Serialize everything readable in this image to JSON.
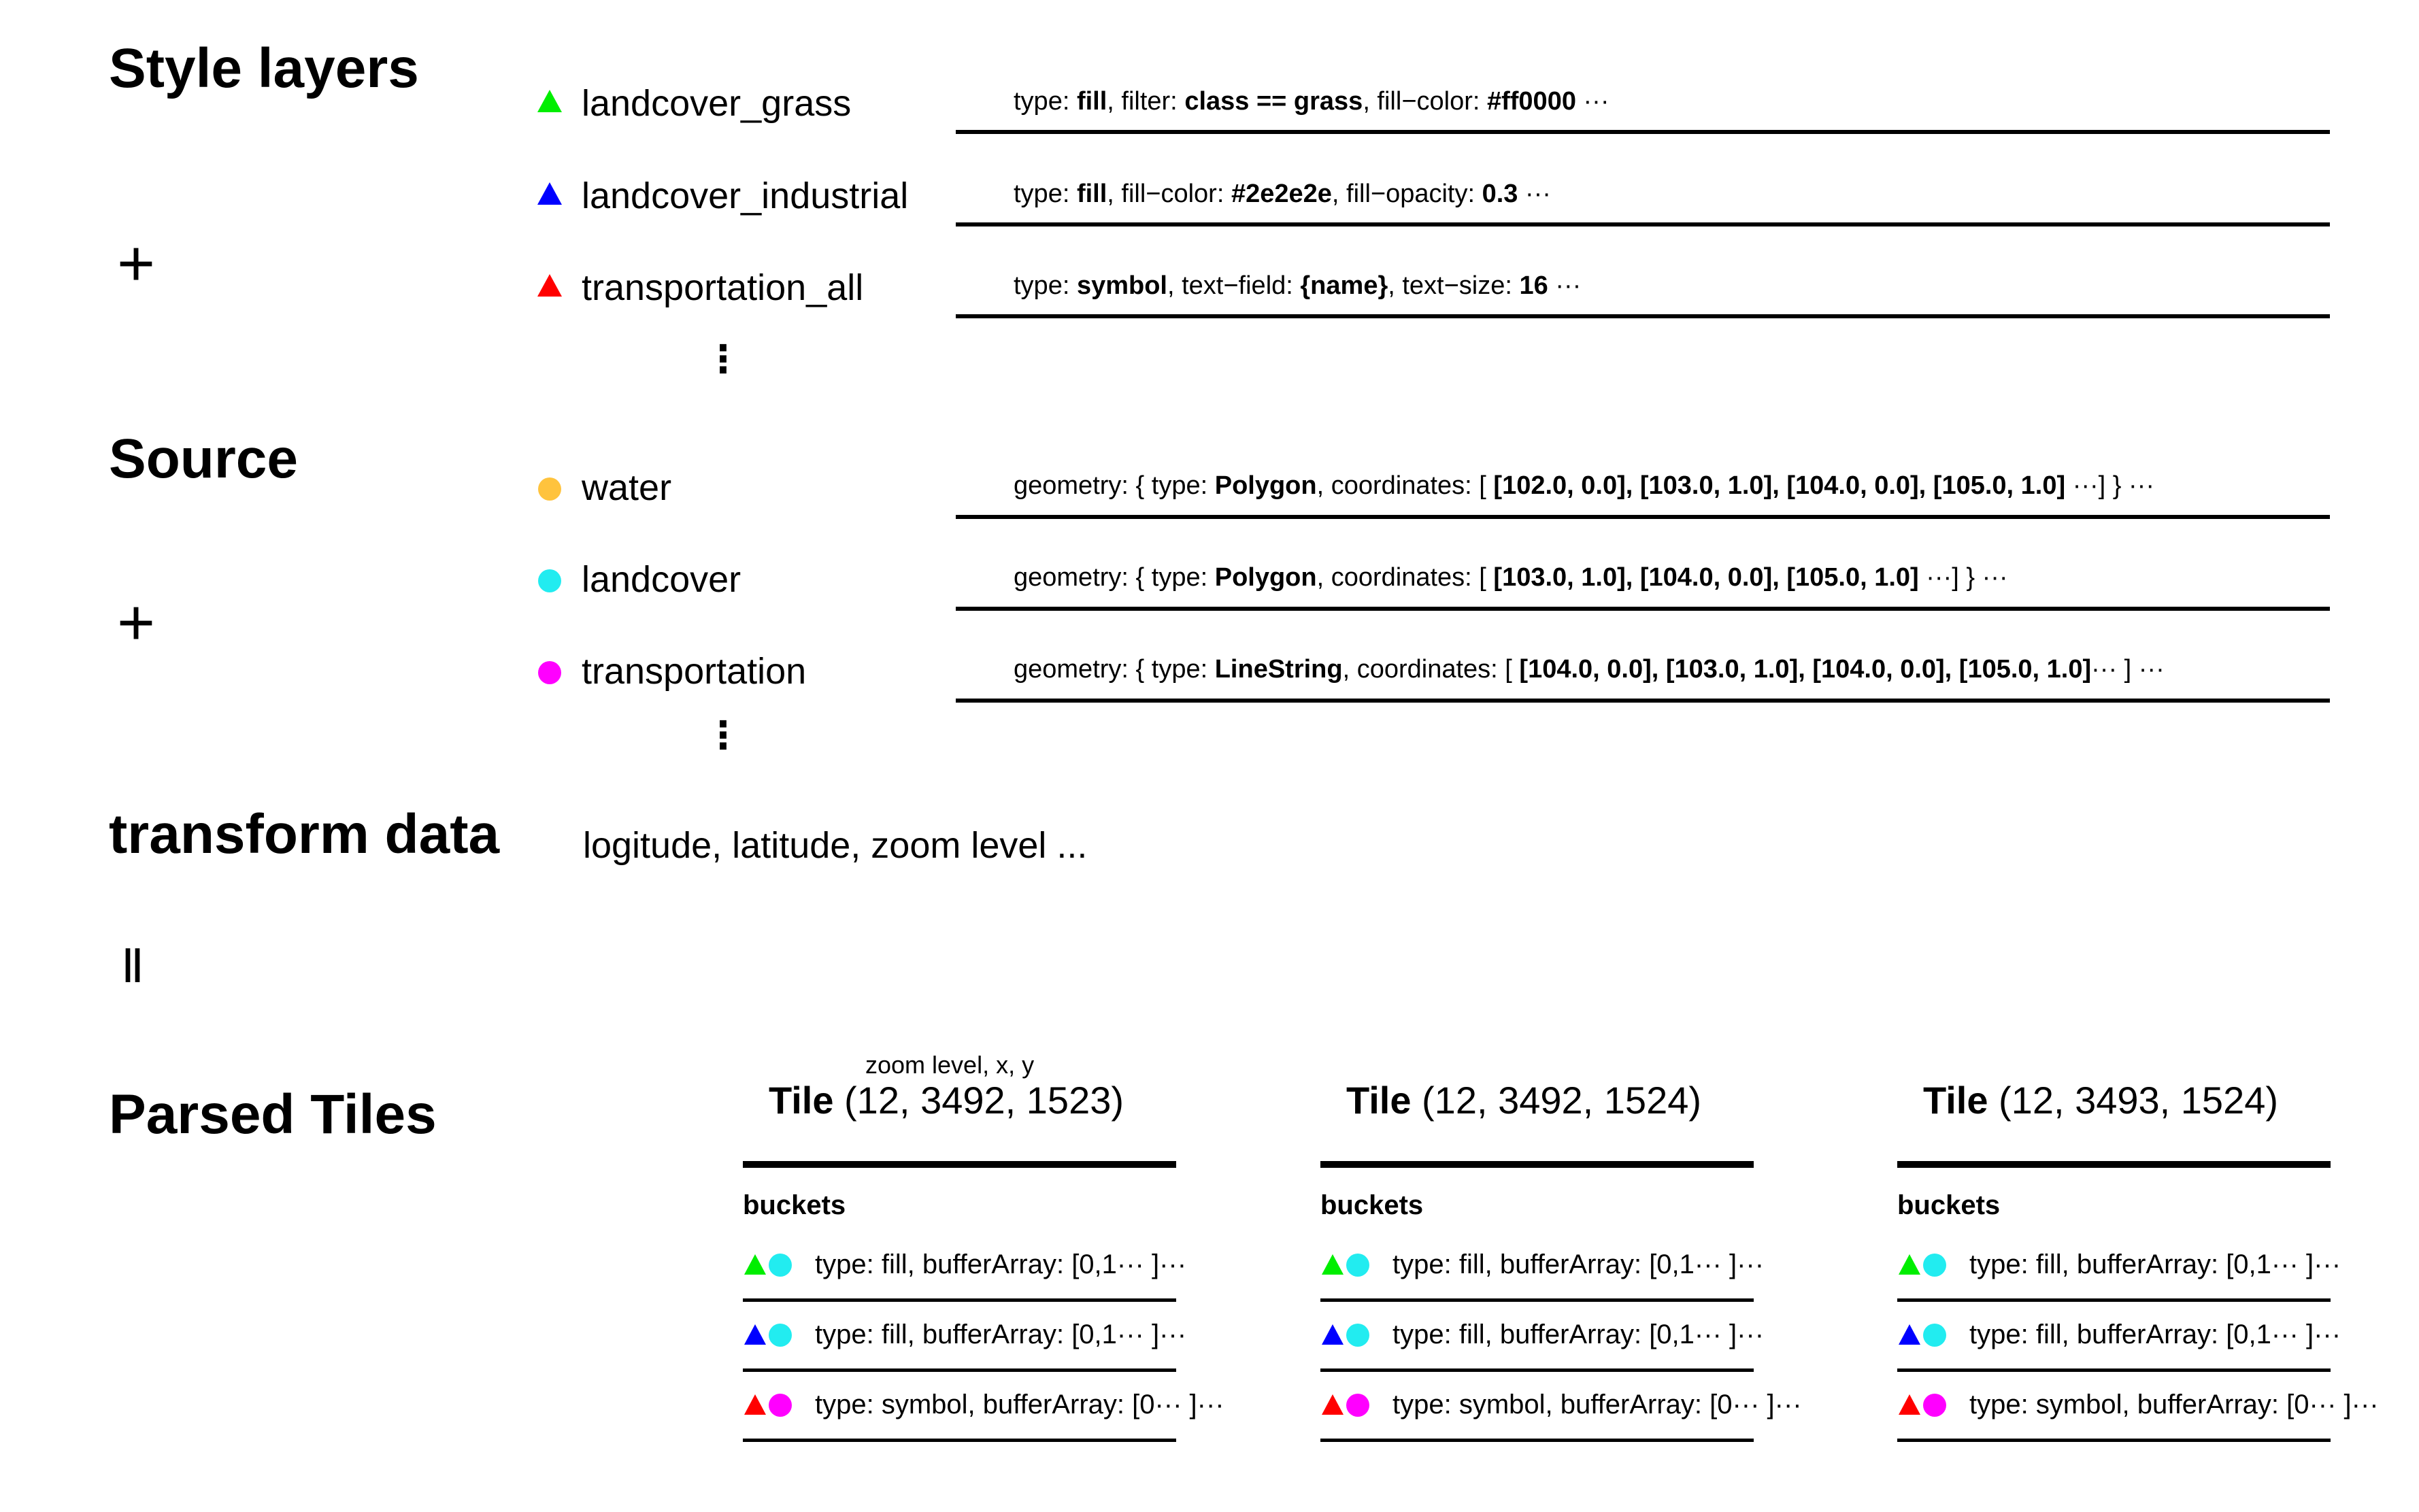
{
  "headings": {
    "style_layers": "Style layers",
    "source": "Source",
    "transform": "transform data",
    "parsed": "Parsed Tiles"
  },
  "operators": {
    "plus": "+",
    "equals": "II"
  },
  "ellipsis": "⋮",
  "colors": {
    "green": "#00ee00",
    "blue": "#0000ff",
    "red": "#ff0000",
    "orange": "#ffc33d",
    "cyan": "#22ecf0",
    "magenta": "#ff00ff"
  },
  "style_layers": [
    {
      "name": "landcover_grass",
      "marker": "triangle",
      "props": [
        {
          "t": "type: "
        },
        {
          "t": "fill",
          "b": true
        },
        {
          "t": ", filter: "
        },
        {
          "t": "class == grass",
          "b": true
        },
        {
          "t": ", fill−color: "
        },
        {
          "t": "#ff0000",
          "b": true
        },
        {
          "t": " ···"
        }
      ]
    },
    {
      "name": "landcover_industrial",
      "marker": "triangle",
      "props": [
        {
          "t": "type: "
        },
        {
          "t": "fill",
          "b": true
        },
        {
          "t": ",  fill−color: "
        },
        {
          "t": "#2e2e2e",
          "b": true
        },
        {
          "t": ", fill−opacity: "
        },
        {
          "t": "0.3",
          "b": true
        },
        {
          "t": " ···"
        }
      ]
    },
    {
      "name": "transportation_all",
      "marker": "triangle",
      "props": [
        {
          "t": "type: "
        },
        {
          "t": "symbol",
          "b": true
        },
        {
          "t": ",  text−field: "
        },
        {
          "t": "{name}",
          "b": true
        },
        {
          "t": ", text−size: "
        },
        {
          "t": "16",
          "b": true
        },
        {
          "t": " ···"
        }
      ]
    }
  ],
  "sources": [
    {
      "name": "water",
      "marker": "circle",
      "props": [
        {
          "t": "geometry: { type: "
        },
        {
          "t": "Polygon",
          "b": true
        },
        {
          "t": ", coordinates: [ "
        },
        {
          "t": "[102.0, 0.0], [103.0, 1.0], [104.0, 0.0], [105.0, 1.0]",
          "b": true
        },
        {
          "t": " ···] } ···"
        }
      ]
    },
    {
      "name": "landcover",
      "marker": "circle",
      "props": [
        {
          "t": "geometry: { type: "
        },
        {
          "t": "Polygon",
          "b": true
        },
        {
          "t": ", coordinates: [ "
        },
        {
          "t": "[103.0, 1.0], [104.0, 0.0], [105.0, 1.0]",
          "b": true
        },
        {
          "t": " ···] } ···"
        }
      ]
    },
    {
      "name": "transportation",
      "marker": "circle",
      "props": [
        {
          "t": "geometry: { type: "
        },
        {
          "t": "LineString",
          "b": true
        },
        {
          "t": ", coordinates: [ "
        },
        {
          "t": "[104.0, 0.0], [103.0, 1.0], [104.0, 0.0], [105.0, 1.0]",
          "b": true
        },
        {
          "t": "··· ] ···"
        }
      ]
    }
  ],
  "transform_text": "logitude, latitude, zoom level ...",
  "tile_coord_label": "zoom level, x, y",
  "tile_word": "Tile",
  "buckets_label": "buckets",
  "tiles": [
    {
      "coords": "(12, 3492, 1523)"
    },
    {
      "coords": "(12, 3492, 1524)"
    },
    {
      "coords": "(12, 3493, 1524)"
    }
  ],
  "buckets": [
    {
      "text": "type: fill, bufferArray: [0,1··· ]···"
    },
    {
      "text": "type: fill, bufferArray: [0,1··· ]···"
    },
    {
      "text": "type: symbol, bufferArray: [0··· ]···"
    }
  ]
}
